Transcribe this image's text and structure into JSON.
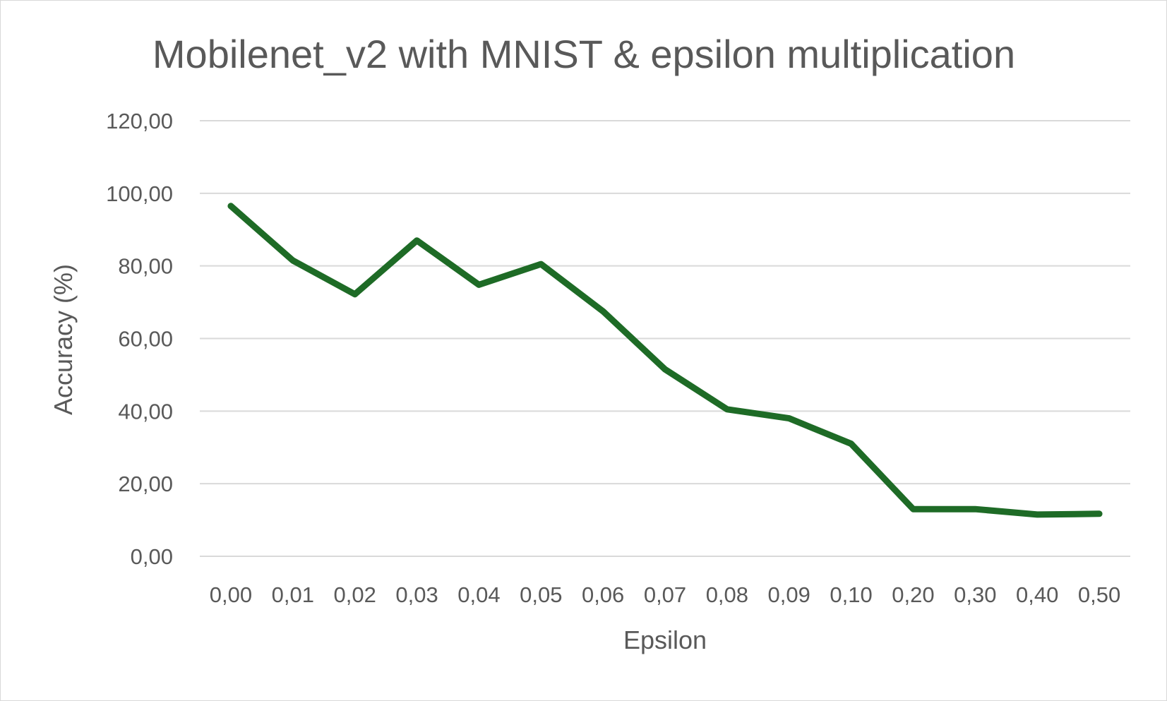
{
  "chart_data": {
    "type": "line",
    "title": "Mobilenet_v2 with MNIST & epsilon multiplication",
    "xlabel": "Epsilon",
    "ylabel": "Accuracy (%)",
    "categories": [
      "0,00",
      "0,01",
      "0,02",
      "0,03",
      "0,04",
      "0,05",
      "0,06",
      "0,07",
      "0,08",
      "0,09",
      "0,10",
      "0,20",
      "0,30",
      "0,40",
      "0,50"
    ],
    "series": [
      {
        "values": [
          96.5,
          81.5,
          72.2,
          87.0,
          74.8,
          80.5,
          67.5,
          51.5,
          40.5,
          38.0,
          31.0,
          13.0,
          13.0,
          11.5,
          11.7
        ],
        "color": "#1e6b26"
      }
    ],
    "yticks": [
      "0,00",
      "20,00",
      "40,00",
      "60,00",
      "80,00",
      "100,00",
      "120,00"
    ],
    "ylim": [
      0,
      120
    ],
    "ytick_step": 20,
    "grid": true,
    "legend": "none"
  }
}
